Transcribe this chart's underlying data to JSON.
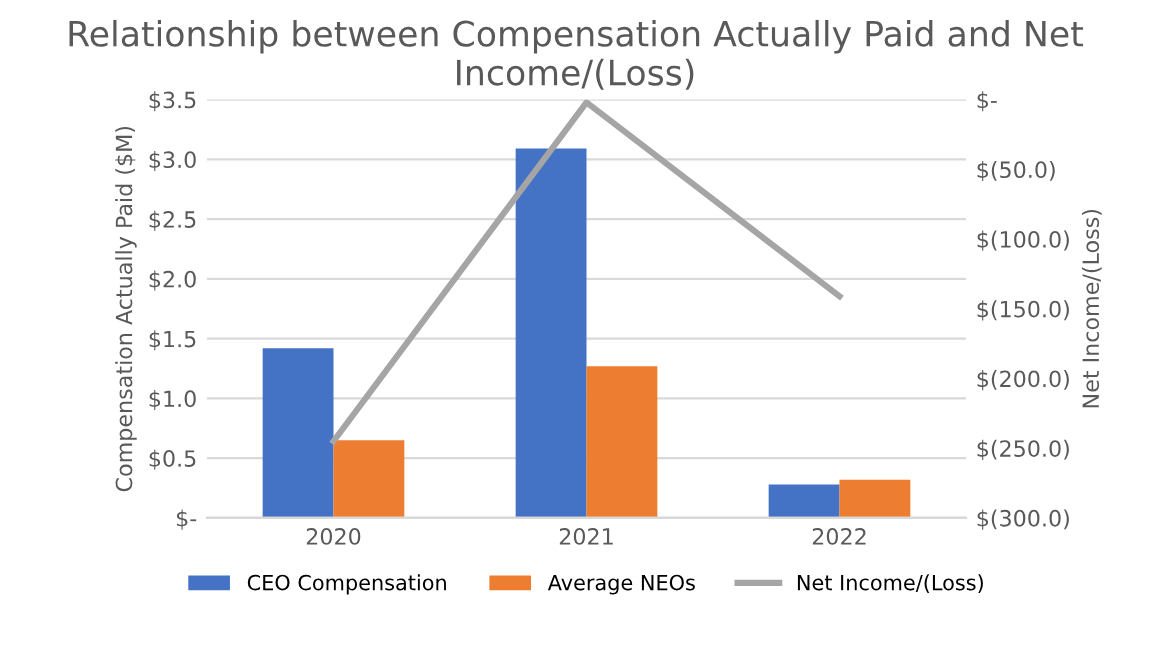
{
  "chart_data": {
    "type": "bar",
    "title": "Relationship between Compensation Actually Paid and Net Income/(Loss)",
    "categories": [
      "2020",
      "2021",
      "2022"
    ],
    "ylabel": "Compensation Actually Paid ($M)",
    "y2label": "Net Income/(Loss)",
    "series": [
      {
        "name": "CEO Compensation",
        "color": "#4472c4",
        "values": [
          1.42,
          3.09,
          0.28
        ]
      },
      {
        "name": "Average NEOs",
        "color": "#ed7d31",
        "values": [
          0.65,
          1.27,
          0.32
        ]
      },
      {
        "name": "Net Income/(Loss)",
        "type": "line",
        "axis": "y2",
        "color": "#a5a5a5",
        "values": [
          -245,
          -2,
          -141
        ]
      }
    ],
    "ylim": [
      0,
      3.5
    ],
    "yticks": [
      {
        "value": 0,
        "label": "$-"
      },
      {
        "value": 0.5,
        "label": "$0.5"
      },
      {
        "value": 1.0,
        "label": "$1.0"
      },
      {
        "value": 1.5,
        "label": "$1.5"
      },
      {
        "value": 2.0,
        "label": "$2.0"
      },
      {
        "value": 2.5,
        "label": "$2.5"
      },
      {
        "value": 3.0,
        "label": "$3.0"
      },
      {
        "value": 3.5,
        "label": "$3.5"
      }
    ],
    "y2lim": [
      -300,
      0
    ],
    "y2ticks": [
      {
        "value": -300,
        "label": "$(300.0)"
      },
      {
        "value": -250,
        "label": "$(250.0)"
      },
      {
        "value": -200,
        "label": "$(200.0)"
      },
      {
        "value": -150,
        "label": "$(150.0)"
      },
      {
        "value": -100,
        "label": "$(100.0)"
      },
      {
        "value": -50,
        "label": "$(50.0)"
      },
      {
        "value": 0,
        "label": "$-"
      }
    ],
    "grid": "y",
    "legend": "bottom",
    "marker": "none",
    "line_style": "solid"
  }
}
